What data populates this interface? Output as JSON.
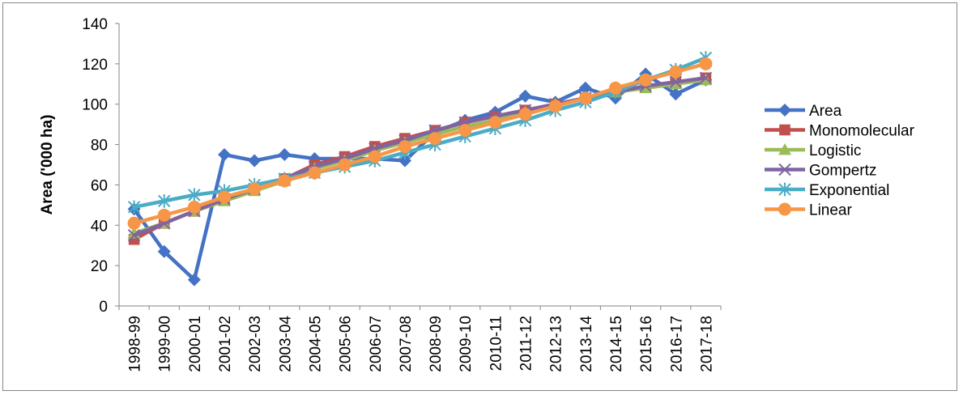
{
  "chart_data": {
    "type": "line",
    "title": "",
    "xlabel": "",
    "ylabel": "Area ('000 ha)",
    "ylim": [
      0,
      140
    ],
    "yticks": [
      0,
      20,
      40,
      60,
      80,
      100,
      120,
      140
    ],
    "grid": false,
    "legend_position": "right",
    "categories": [
      "1998-99",
      "1999-00",
      "2000-01",
      "2001-02",
      "2002-03",
      "2003-04",
      "2004-05",
      "2005-06",
      "2006-07",
      "2007-08",
      "2008-09",
      "2009-10",
      "2010-11",
      "2011-12",
      "2012-13",
      "2013-14",
      "2014-15",
      "2015-16",
      "2016-17",
      "2017-18"
    ],
    "series": [
      {
        "name": "Area",
        "color": "#4472C4",
        "marker": "diamond",
        "values": [
          48,
          27,
          13,
          75,
          72,
          75,
          73,
          73,
          73,
          72,
          86,
          92,
          96,
          104,
          101,
          108,
          103,
          115,
          105,
          112
        ]
      },
      {
        "name": "Monomolecular",
        "color": "#C0504D",
        "marker": "square",
        "values": [
          33,
          41,
          47,
          53,
          58,
          63,
          70,
          74,
          79,
          83,
          87,
          91,
          94,
          97,
          100,
          103,
          106,
          109,
          111,
          113
        ]
      },
      {
        "name": "Logistic",
        "color": "#9BBB59",
        "marker": "triangle",
        "values": [
          36,
          41,
          47,
          52,
          57,
          62,
          68,
          72,
          77,
          81,
          85,
          89,
          92,
          96,
          100,
          103,
          106,
          108,
          110,
          112
        ]
      },
      {
        "name": "Gompertz",
        "color": "#8064A2",
        "marker": "x",
        "values": [
          35,
          41,
          47,
          53,
          58,
          63,
          69,
          73,
          78,
          82,
          87,
          91,
          94,
          97,
          100,
          103,
          106,
          109,
          111,
          113
        ]
      },
      {
        "name": "Exponential",
        "color": "#4BACC6",
        "marker": "star",
        "values": [
          49,
          52,
          55,
          57,
          60,
          63,
          66,
          69,
          72,
          76,
          80,
          84,
          88,
          92,
          97,
          101,
          106,
          112,
          117,
          123
        ]
      },
      {
        "name": "Linear",
        "color": "#F79646",
        "marker": "circle",
        "values": [
          41,
          45,
          49,
          54,
          58,
          62,
          66,
          70,
          74,
          79,
          83,
          87,
          91,
          95,
          99,
          103,
          108,
          112,
          116,
          120
        ]
      }
    ]
  }
}
